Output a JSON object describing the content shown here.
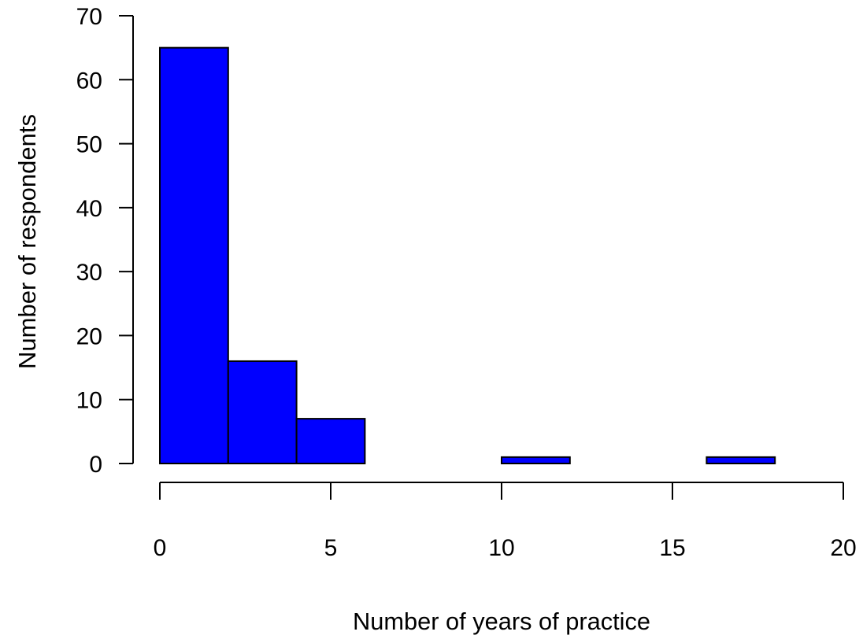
{
  "chart_data": {
    "type": "bar",
    "title": "",
    "xlabel": "Number of years of practice",
    "ylabel": "Number of respondents",
    "bins": [
      {
        "x0": 0,
        "x1": 2,
        "count": 65
      },
      {
        "x0": 2,
        "x1": 4,
        "count": 16
      },
      {
        "x0": 4,
        "x1": 6,
        "count": 7
      },
      {
        "x0": 6,
        "x1": 8,
        "count": 0
      },
      {
        "x0": 8,
        "x1": 10,
        "count": 0
      },
      {
        "x0": 10,
        "x1": 12,
        "count": 1
      },
      {
        "x0": 12,
        "x1": 14,
        "count": 0
      },
      {
        "x0": 14,
        "x1": 16,
        "count": 0
      },
      {
        "x0": 16,
        "x1": 18,
        "count": 1
      }
    ],
    "xlim": [
      0,
      20
    ],
    "ylim": [
      0,
      70
    ],
    "x_ticks": [
      "0",
      "5",
      "10",
      "15",
      "20"
    ],
    "y_ticks": [
      "0",
      "10",
      "20",
      "30",
      "40",
      "50",
      "60",
      "70"
    ],
    "grid": false,
    "bar_color": "#0000ff",
    "edge_color": "#000000"
  }
}
